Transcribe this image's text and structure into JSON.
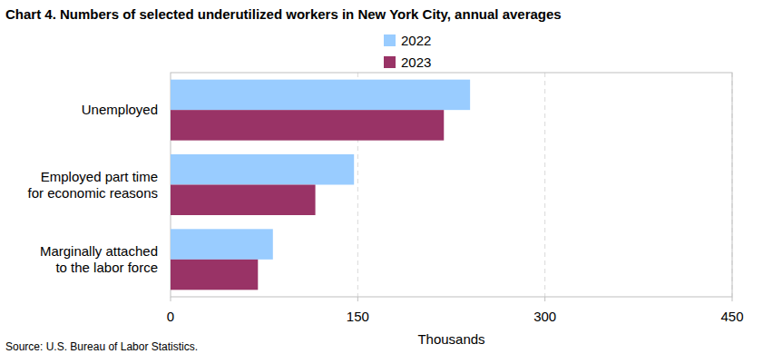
{
  "chart_data": {
    "type": "bar",
    "orientation": "horizontal",
    "title": "Chart 4. Numbers of selected underutilized workers in New York City, annual averages",
    "categories": [
      "Unemployed",
      "Employed part time\nfor economic reasons",
      "Marginally attached\nto the labor force"
    ],
    "series": [
      {
        "name": "2022",
        "color": "#99ccff",
        "values": [
          240,
          147,
          82
        ]
      },
      {
        "name": "2023",
        "color": "#993366",
        "values": [
          219,
          116,
          70
        ]
      }
    ],
    "xlim": [
      0,
      450
    ],
    "xticks": [
      0,
      150,
      300,
      450
    ],
    "grid": true,
    "legend": "top",
    "xlabel": "Thousands",
    "source": "Source: U.S. Bureau of Labor Statistics."
  }
}
